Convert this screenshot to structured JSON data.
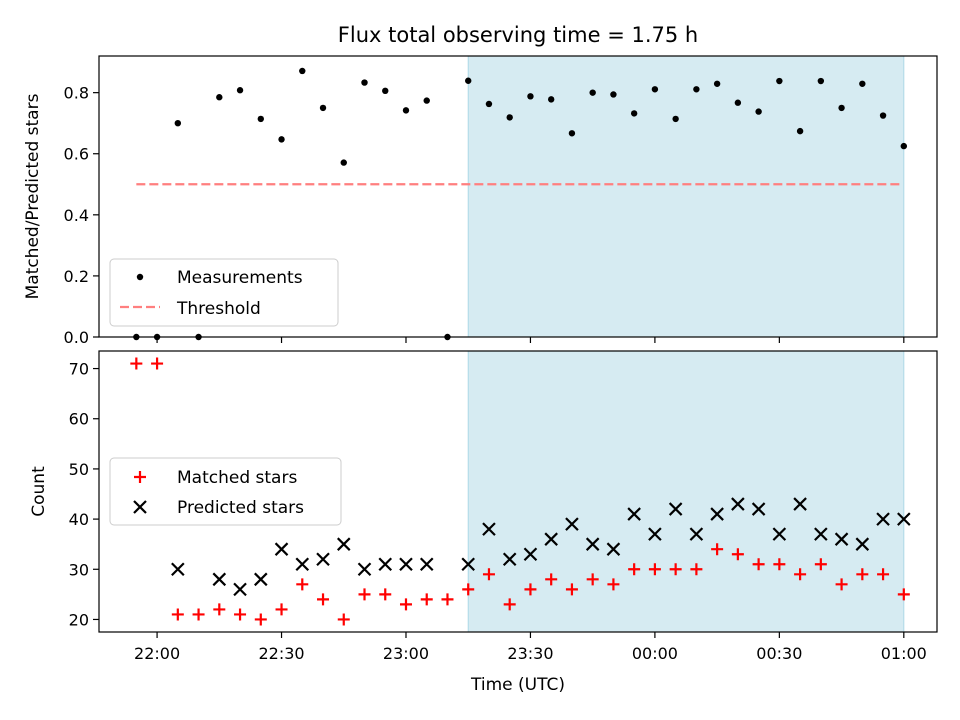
{
  "title": "Flux total observing time = 1.75 h",
  "colors": {
    "shade": "#add8e6",
    "measurement": "#000000",
    "threshold": "#ff7f7f",
    "matched": "#ff0000",
    "predicted": "#000000"
  },
  "chart_data": [
    {
      "type": "scatter",
      "ylabel": "Matched/Predicted stars",
      "ylim": [
        0,
        0.92
      ],
      "yticks": [
        0.0,
        0.2,
        0.4,
        0.6,
        0.8
      ],
      "ytick_labels": [
        "0.0",
        "0.2",
        "0.4",
        "0.6",
        "0.8"
      ],
      "legend_position": "lower-left",
      "shaded_region": [
        "23:15",
        "01:00"
      ],
      "threshold": {
        "name": "Threshold",
        "value": 0.5,
        "x_range": [
          "21:55",
          "00:59"
        ]
      },
      "series": [
        {
          "name": "Measurements",
          "points": [
            [
              "21:55",
              0.0
            ],
            [
              "22:00",
              0.0
            ],
            [
              "22:05",
              0.7
            ],
            [
              "22:10",
              0.0
            ],
            [
              "22:15",
              0.785
            ],
            [
              "22:20",
              0.808
            ],
            [
              "22:25",
              0.714
            ],
            [
              "22:30",
              0.647
            ],
            [
              "22:35",
              0.871
            ],
            [
              "22:40",
              0.75
            ],
            [
              "22:45",
              0.571
            ],
            [
              "22:50",
              0.833
            ],
            [
              "22:55",
              0.806
            ],
            [
              "23:00",
              0.742
            ],
            [
              "23:05",
              0.774
            ],
            [
              "23:10",
              0.0
            ],
            [
              "23:15",
              0.839
            ],
            [
              "23:20",
              0.763
            ],
            [
              "23:25",
              0.719
            ],
            [
              "23:30",
              0.788
            ],
            [
              "23:35",
              0.778
            ],
            [
              "23:40",
              0.667
            ],
            [
              "23:45",
              0.8
            ],
            [
              "23:50",
              0.794
            ],
            [
              "23:55",
              0.732
            ],
            [
              "00:00",
              0.811
            ],
            [
              "00:05",
              0.714
            ],
            [
              "00:10",
              0.811
            ],
            [
              "00:15",
              0.829
            ],
            [
              "00:20",
              0.767
            ],
            [
              "00:25",
              0.738
            ],
            [
              "00:30",
              0.838
            ],
            [
              "00:35",
              0.674
            ],
            [
              "00:40",
              0.838
            ],
            [
              "00:45",
              0.75
            ],
            [
              "00:50",
              0.829
            ],
            [
              "00:55",
              0.725
            ],
            [
              "01:00",
              0.625
            ]
          ]
        }
      ]
    },
    {
      "type": "scatter",
      "xlabel": "Time (UTC)",
      "ylabel": "Count",
      "ylim": [
        17.5,
        73.5
      ],
      "yticks": [
        20,
        30,
        40,
        50,
        60,
        70
      ],
      "xlim": [
        "21:46",
        "01:08"
      ],
      "xticks": [
        "22:00",
        "22:30",
        "23:00",
        "23:30",
        "00:00",
        "00:30",
        "01:00"
      ],
      "legend_position": "center-left",
      "shaded_region": [
        "23:15",
        "01:00"
      ],
      "series": [
        {
          "name": "Matched stars",
          "points": [
            [
              "21:55",
              71
            ],
            [
              "22:00",
              71
            ],
            [
              "22:05",
              21
            ],
            [
              "22:10",
              21
            ],
            [
              "22:15",
              22
            ],
            [
              "22:20",
              21
            ],
            [
              "22:25",
              20
            ],
            [
              "22:30",
              22
            ],
            [
              "22:35",
              27
            ],
            [
              "22:40",
              24
            ],
            [
              "22:45",
              20
            ],
            [
              "22:50",
              25
            ],
            [
              "22:55",
              25
            ],
            [
              "23:00",
              23
            ],
            [
              "23:05",
              24
            ],
            [
              "23:10",
              24
            ],
            [
              "23:15",
              26
            ],
            [
              "23:20",
              29
            ],
            [
              "23:25",
              23
            ],
            [
              "23:30",
              26
            ],
            [
              "23:35",
              28
            ],
            [
              "23:40",
              26
            ],
            [
              "23:45",
              28
            ],
            [
              "23:50",
              27
            ],
            [
              "23:55",
              30
            ],
            [
              "00:00",
              30
            ],
            [
              "00:05",
              30
            ],
            [
              "00:10",
              30
            ],
            [
              "00:15",
              34
            ],
            [
              "00:20",
              33
            ],
            [
              "00:25",
              31
            ],
            [
              "00:30",
              31
            ],
            [
              "00:35",
              29
            ],
            [
              "00:40",
              31
            ],
            [
              "00:45",
              27
            ],
            [
              "00:50",
              29
            ],
            [
              "00:55",
              29
            ],
            [
              "01:00",
              25
            ]
          ]
        },
        {
          "name": "Predicted stars",
          "points": [
            [
              "22:05",
              30
            ],
            [
              "22:15",
              28
            ],
            [
              "22:20",
              26
            ],
            [
              "22:25",
              28
            ],
            [
              "22:30",
              34
            ],
            [
              "22:35",
              31
            ],
            [
              "22:40",
              32
            ],
            [
              "22:45",
              35
            ],
            [
              "22:50",
              30
            ],
            [
              "22:55",
              31
            ],
            [
              "23:00",
              31
            ],
            [
              "23:05",
              31
            ],
            [
              "23:15",
              31
            ],
            [
              "23:20",
              38
            ],
            [
              "23:25",
              32
            ],
            [
              "23:30",
              33
            ],
            [
              "23:35",
              36
            ],
            [
              "23:40",
              39
            ],
            [
              "23:45",
              35
            ],
            [
              "23:50",
              34
            ],
            [
              "23:55",
              41
            ],
            [
              "00:00",
              37
            ],
            [
              "00:05",
              42
            ],
            [
              "00:10",
              37
            ],
            [
              "00:15",
              41
            ],
            [
              "00:20",
              43
            ],
            [
              "00:25",
              42
            ],
            [
              "00:30",
              37
            ],
            [
              "00:35",
              43
            ],
            [
              "00:40",
              37
            ],
            [
              "00:45",
              36
            ],
            [
              "00:50",
              35
            ],
            [
              "00:55",
              40
            ],
            [
              "01:00",
              40
            ]
          ]
        }
      ]
    }
  ]
}
